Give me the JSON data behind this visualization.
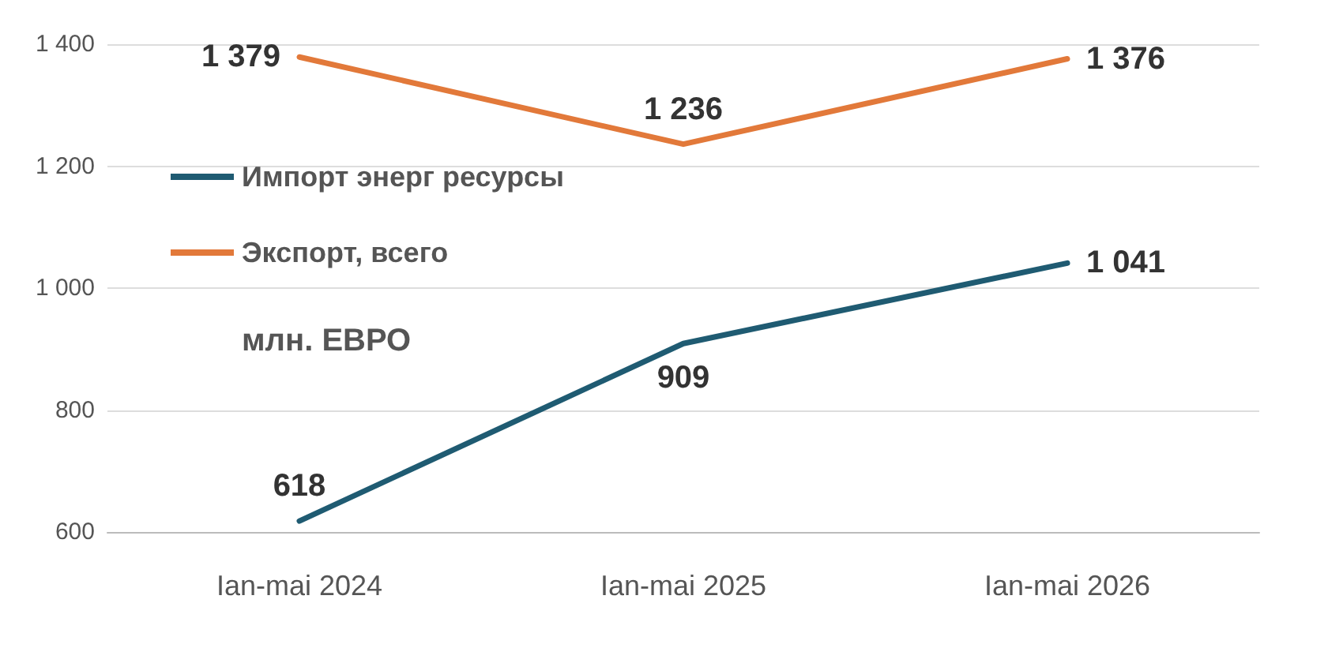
{
  "chart_data": {
    "type": "line",
    "categories": [
      "Ian-mai 2024",
      "Ian-mai 2025",
      "Ian-mai 2026"
    ],
    "series": [
      {
        "name": "Импорт энерг ресурсы",
        "color": "#1f5b72",
        "values": [
          618,
          909,
          1041
        ],
        "value_labels": [
          "618",
          "909",
          "1 041"
        ]
      },
      {
        "name": "Экспорт, всего",
        "color": "#e2793a",
        "values": [
          1379,
          1236,
          1376
        ],
        "value_labels": [
          "1 379",
          "1 236",
          "1 376"
        ]
      }
    ],
    "ylim": [
      600,
      1400
    ],
    "yticks": [
      {
        "value": 600,
        "label": "600"
      },
      {
        "value": 800,
        "label": "800"
      },
      {
        "value": 1000,
        "label": "1 000"
      },
      {
        "value": 1200,
        "label": "1 200"
      },
      {
        "value": 1400,
        "label": "1 400"
      }
    ],
    "grid": "y",
    "legend": "left",
    "marker": "none",
    "line_style": "solid",
    "annotations": [
      "млн. ЕВРО"
    ]
  }
}
